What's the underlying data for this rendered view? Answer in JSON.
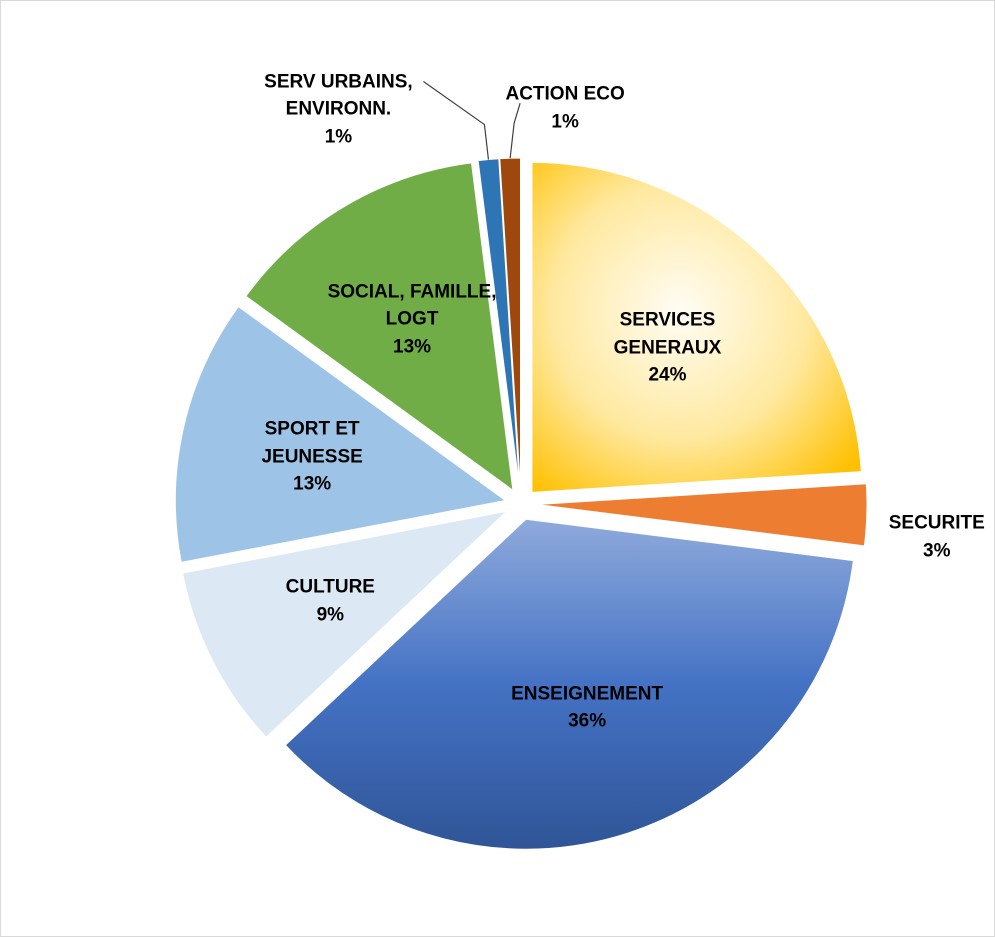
{
  "chart_data": {
    "type": "pie",
    "categories": [
      "SERVICES GENERAUX",
      "SECURITE",
      "ENSEIGNEMENT",
      "CULTURE",
      "SPORT ET JEUNESSE",
      "SOCIAL, FAMILLE, LOGT",
      "SERV URBAINS, ENVIRONN.",
      "ACTION ECO"
    ],
    "values": [
      24,
      3,
      36,
      9,
      13,
      13,
      1,
      1
    ],
    "value_labels": [
      "24%",
      "3%",
      "36%",
      "9%",
      "13%",
      "13%",
      "1%",
      "1%"
    ],
    "colors": [
      "#ffc000",
      "#ed7d31",
      "#4472c4",
      "#dce9f5",
      "#9dc3e6",
      "#70ad47",
      "#2e75b6",
      "#9e480e"
    ]
  }
}
